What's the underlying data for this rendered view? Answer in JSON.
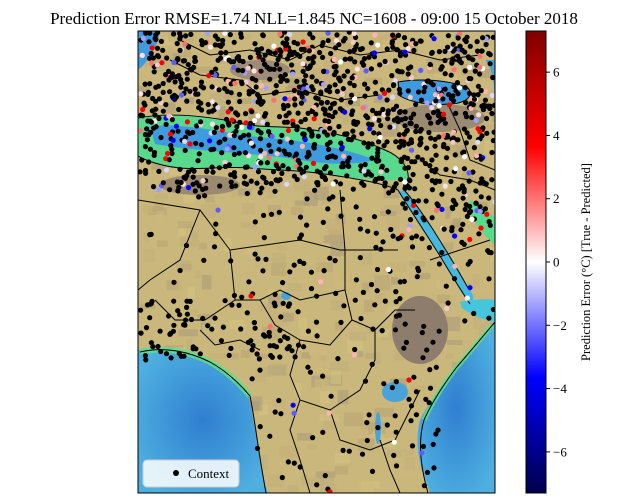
{
  "chart_data": {
    "type": "scatter",
    "title": "Prediction Error RMSE=1.74 NLL=1.845 NC=1608 - 09:00 15 October 2018",
    "map_region": "Mediterranean, North Africa and East Africa",
    "legend": {
      "entries": [
        "Context"
      ],
      "placement": "lower-left"
    },
    "colorbar": {
      "label": "Prediction Error (°C) [True - Predicted]",
      "range": [
        -7.3,
        7.3
      ],
      "ticks": [
        -6,
        -4,
        -2,
        0,
        2,
        4,
        6
      ],
      "tick_labels": [
        "−6",
        "−4",
        "−2",
        "0",
        "2",
        "4",
        "6"
      ],
      "colormap": "seismic",
      "colors": [
        "#00004c",
        "#0000ff",
        "#ffffff",
        "#ff0000",
        "#800000"
      ]
    },
    "grid": false,
    "series": [
      {
        "name": "Context",
        "marker_color": "#000000",
        "count": 1608
      }
    ],
    "colors": {
      "land": "#c9b77c",
      "highland": "#8f7f6a",
      "sea": "#4aa3d8",
      "shallow_sea": "#56e08a",
      "border": "#000000"
    }
  }
}
